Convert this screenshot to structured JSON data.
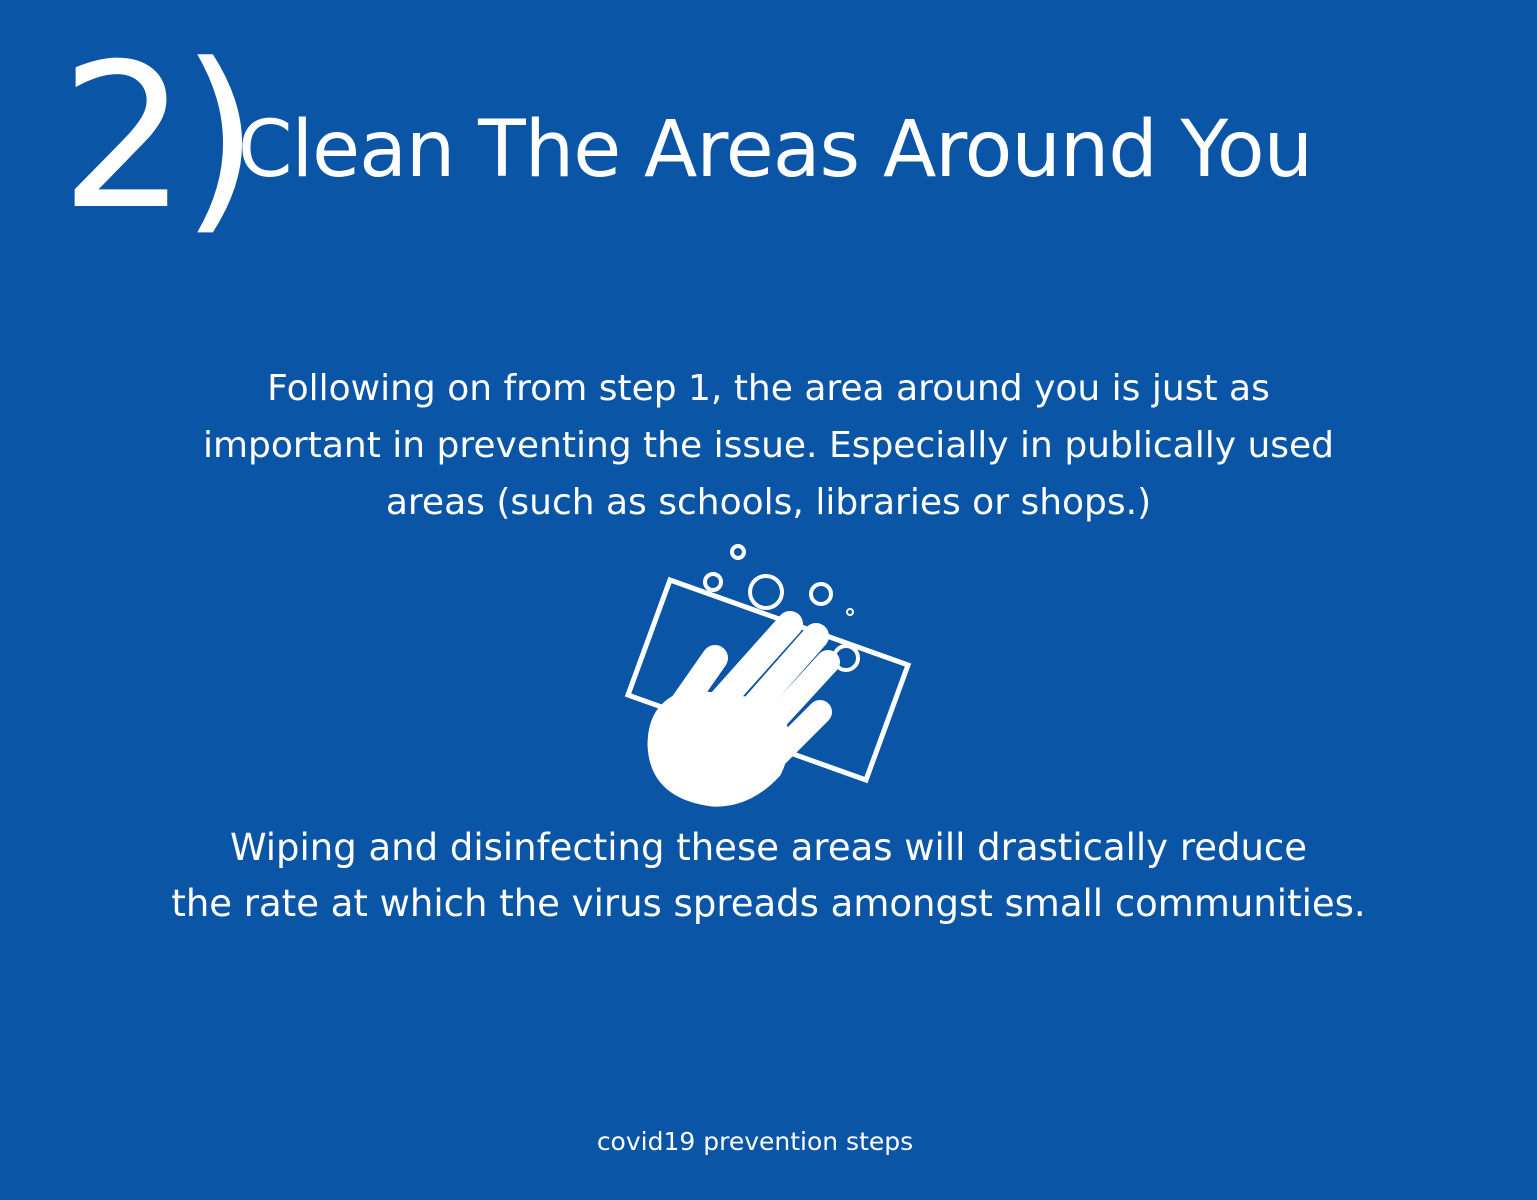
{
  "header": {
    "step_number": "2)",
    "title": "Clean The Areas Around You"
  },
  "intro": {
    "lines": [
      "Following on from step 1, the area around you is just as",
      "important in preventing the issue. Especially in publically used",
      "areas (such as schools, libraries or shops.)"
    ]
  },
  "illustration": {
    "icon": "hand-wiping-cloth-icon"
  },
  "detail": {
    "lines": [
      "Wiping and disinfecting these areas will drastically reduce",
      "the rate at which the virus spreads amongst small communities."
    ]
  },
  "footer": {
    "text": "covid19 prevention steps"
  },
  "colors": {
    "background": "#0b55a6",
    "foreground": "#ffffff"
  }
}
